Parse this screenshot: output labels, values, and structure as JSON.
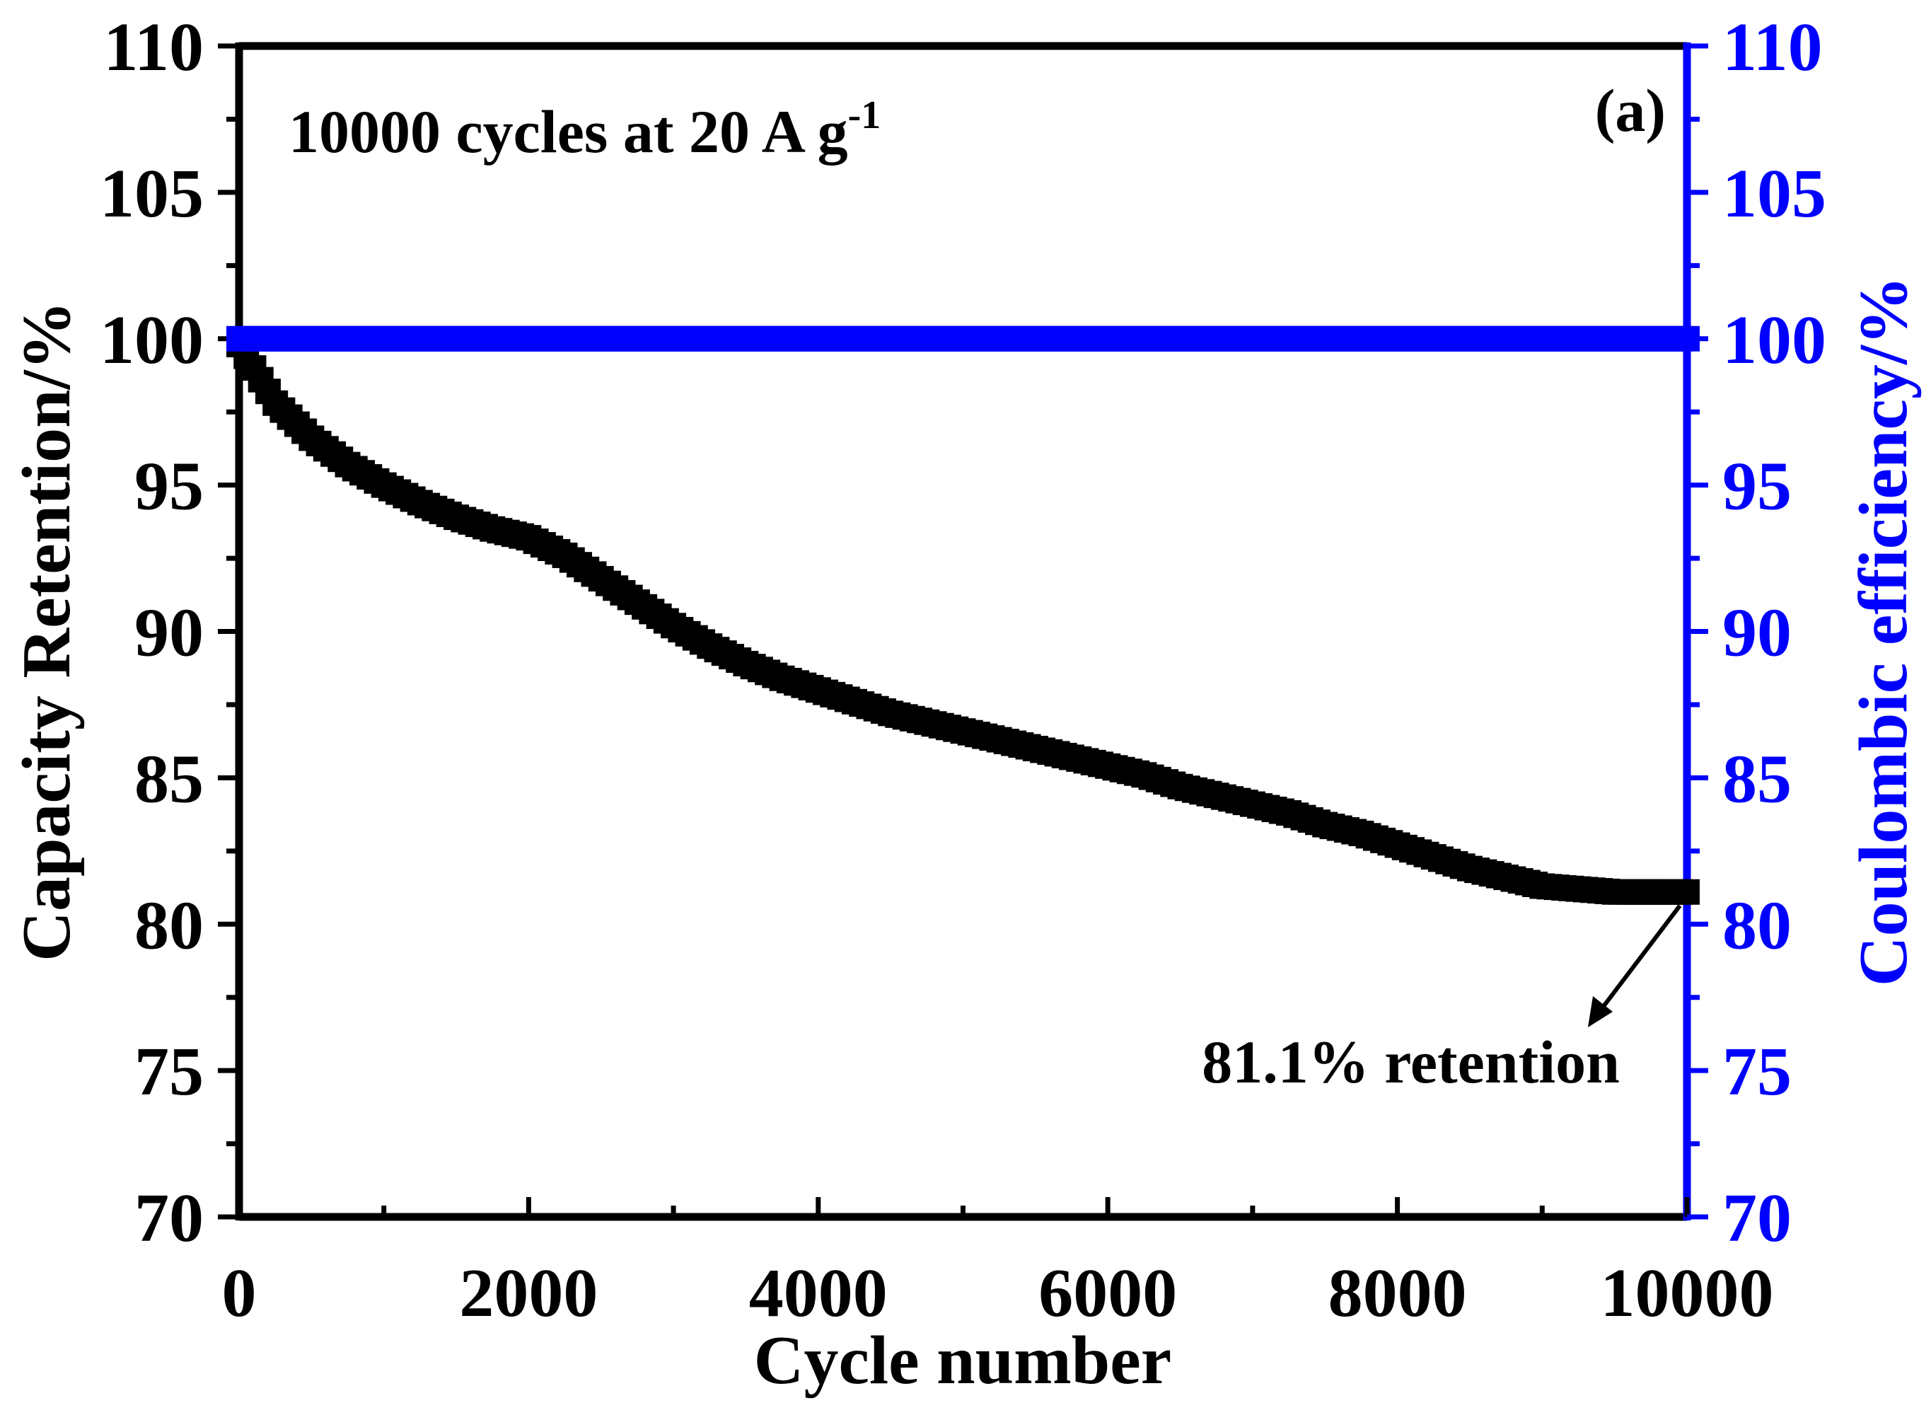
{
  "chart_data": {
    "type": "scatter",
    "panel_label": "(a)",
    "annotation_top_text": "10000 cycles at 20 A g",
    "annotation_top_sup": "-1",
    "annotation_retention": "81.1% retention",
    "xlabel": "Cycle number",
    "ylabel_left": "Capacity Retention/%",
    "ylabel_right": "Coulombic efficiency/%",
    "xlim": [
      0,
      10000
    ],
    "ylim_left": [
      70,
      110
    ],
    "ylim_right": [
      70,
      110
    ],
    "x_ticks": [
      "0",
      "2000",
      "4000",
      "6000",
      "8000",
      "10000"
    ],
    "y_ticks_left": [
      "70",
      "75",
      "80",
      "85",
      "90",
      "95",
      "100",
      "105",
      "110"
    ],
    "y_ticks_right": [
      "70",
      "75",
      "80",
      "85",
      "90",
      "95",
      "100",
      "105",
      "110"
    ],
    "colors": {
      "retention": "#000000",
      "coulombic": "#0000ff",
      "axis_left": "#000000",
      "axis_right": "#0000ff"
    },
    "series": [
      {
        "name": "Capacity Retention",
        "axis": "left",
        "marker": "square",
        "x": [
          0,
          250,
          500,
          750,
          1000,
          1250,
          1500,
          1750,
          2000,
          2250,
          2500,
          2750,
          3000,
          3250,
          3500,
          3750,
          4000,
          4250,
          4500,
          4750,
          5000,
          5250,
          5500,
          5750,
          6000,
          6250,
          6500,
          6750,
          7000,
          7250,
          7500,
          7750,
          8000,
          8250,
          8500,
          8750,
          9000,
          9250,
          9500,
          9750,
          10000
        ],
        "values": [
          99.8,
          97.8,
          96.6,
          95.7,
          95.0,
          94.4,
          93.9,
          93.5,
          93.2,
          92.6,
          91.8,
          91.0,
          90.2,
          89.5,
          88.9,
          88.4,
          88.0,
          87.6,
          87.2,
          86.9,
          86.6,
          86.3,
          86.0,
          85.7,
          85.4,
          85.1,
          84.7,
          84.4,
          84.1,
          83.8,
          83.4,
          83.1,
          82.7,
          82.3,
          81.9,
          81.6,
          81.3,
          81.2,
          81.1,
          81.1,
          81.1
        ]
      },
      {
        "name": "Coulombic efficiency",
        "axis": "right",
        "marker": "square",
        "x": [
          0,
          10000
        ],
        "values": [
          100.0,
          100.0
        ]
      }
    ]
  }
}
